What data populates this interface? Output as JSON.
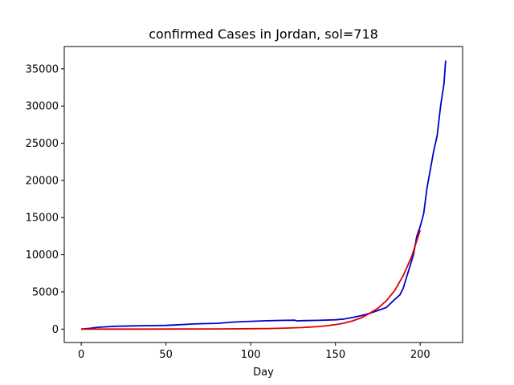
{
  "chart_data": {
    "type": "line",
    "title": "confirmed Cases in Jordan, sol=718",
    "xlabel": "Day",
    "ylabel": "",
    "xlim": [
      -10,
      225
    ],
    "ylim": [
      -1800,
      38000
    ],
    "xticks": [
      0,
      50,
      100,
      150,
      200
    ],
    "yticks": [
      0,
      5000,
      10000,
      15000,
      20000,
      25000,
      30000,
      35000
    ],
    "grid": false,
    "series": [
      {
        "color": "#0000cc",
        "x": [
          0,
          5,
          10,
          20,
          30,
          40,
          50,
          55,
          60,
          65,
          70,
          80,
          85,
          90,
          100,
          110,
          120,
          126,
          127,
          130,
          140,
          150,
          155,
          160,
          165,
          170,
          175,
          180,
          185,
          188,
          190,
          192,
          194,
          196,
          198,
          200,
          202,
          204,
          206,
          208,
          210,
          212,
          214,
          215
        ],
        "y": [
          0,
          100,
          250,
          380,
          430,
          470,
          500,
          550,
          620,
          680,
          720,
          780,
          850,
          950,
          1050,
          1120,
          1180,
          1200,
          1100,
          1130,
          1180,
          1250,
          1350,
          1550,
          1800,
          2100,
          2500,
          2900,
          4000,
          4600,
          5500,
          7000,
          8500,
          10000,
          12500,
          13800,
          15500,
          19000,
          21500,
          24000,
          26000,
          30000,
          33000,
          36100
        ]
      },
      {
        "color": "#dd0000",
        "x": [
          0,
          20,
          40,
          60,
          80,
          100,
          110,
          120,
          130,
          140,
          145,
          150,
          155,
          160,
          165,
          170,
          175,
          180,
          185,
          190,
          195,
          200
        ],
        "y": [
          0,
          2,
          5,
          12,
          25,
          50,
          80,
          130,
          210,
          350,
          450,
          600,
          800,
          1100,
          1500,
          2100,
          2800,
          3800,
          5200,
          7200,
          9800,
          13300
        ]
      }
    ]
  }
}
